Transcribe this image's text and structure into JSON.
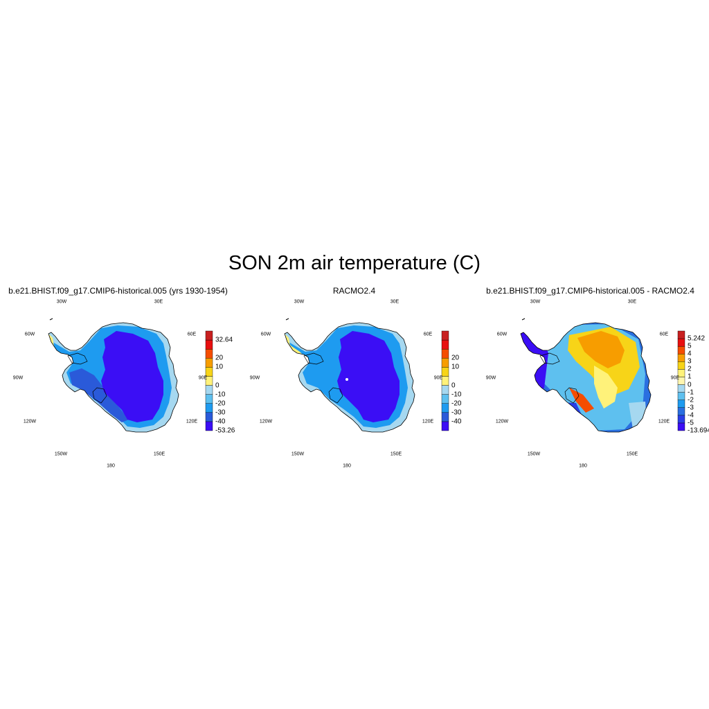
{
  "figure": {
    "title": "SON 2m air temperature (C)"
  },
  "panels": [
    {
      "title": "b.e21.BHIST.f09_g17.CMIP6-historical.005 (yrs 1930-1954)",
      "colorbar": {
        "colors": [
          "#3b0ef5",
          "#2a5ad9",
          "#1e9bf0",
          "#5ec0ef",
          "#a6d8f0",
          "#fff27a",
          "#f7d418",
          "#f79d00",
          "#f54d00",
          "#e80f0f",
          "#c82020"
        ],
        "labels": [
          "-53.26",
          "-40",
          "-30",
          "-20",
          "-10",
          "0",
          "10",
          "20",
          "32.64"
        ],
        "label_slots": [
          0,
          1,
          2,
          3,
          4,
          5,
          7,
          8,
          10
        ]
      },
      "field": "model"
    },
    {
      "title": "RACMO2.4",
      "colorbar": {
        "colors": [
          "#3b0ef5",
          "#2a5ad9",
          "#1e9bf0",
          "#5ec0ef",
          "#a6d8f0",
          "#fff27a",
          "#f7d418",
          "#f79d00",
          "#f54d00",
          "#e80f0f",
          "#c82020"
        ],
        "labels": [
          "-40",
          "-30",
          "-20",
          "-10",
          "0",
          "10",
          "20"
        ],
        "label_slots": [
          1,
          2,
          3,
          4,
          5,
          7,
          8
        ]
      },
      "field": "obs"
    },
    {
      "title": "b.e21.BHIST.f09_g17.CMIP6-historical.005 - RACMO2.4",
      "colorbar": {
        "colors": [
          "#3b0ef5",
          "#2a3ee6",
          "#2a6fe0",
          "#1e9bf0",
          "#5ec0ef",
          "#a6d8f0",
          "#fff6b0",
          "#fff27a",
          "#f7d418",
          "#f79d00",
          "#f54d00",
          "#e80f0f",
          "#c82020"
        ],
        "labels": [
          "-13.694",
          "-5",
          "-4",
          "-3",
          "-2",
          "-1",
          "0",
          "1",
          "2",
          "3",
          "4",
          "5",
          "5.242"
        ],
        "label_slots": [
          0,
          1,
          2,
          3,
          4,
          5,
          6,
          7,
          8,
          9,
          10,
          11,
          12
        ]
      },
      "field": "diff"
    }
  ],
  "map_labels": {
    "lon_30w": "30W",
    "lon_30e": "30E",
    "lon_60w": "60W",
    "lon_60e": "60E",
    "lon_90w": "90W",
    "lon_90e": "90E",
    "lon_120w": "120W",
    "lon_120e": "120E",
    "lon_150w": "150W",
    "lon_150e": "150E",
    "lon_180": "180"
  }
}
